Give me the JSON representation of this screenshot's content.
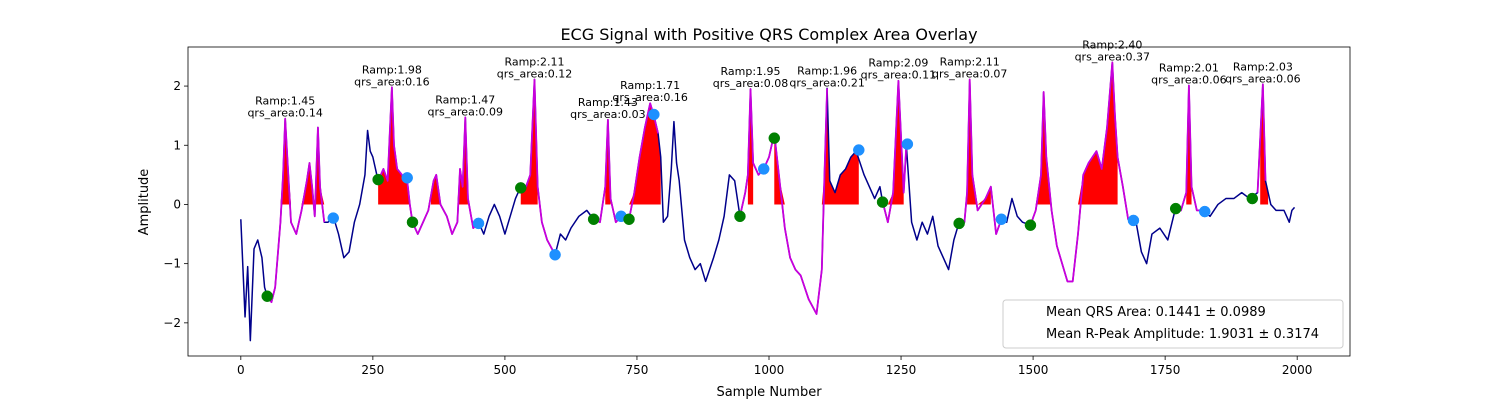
{
  "chart_data": {
    "type": "line",
    "title": "ECG Signal with Positive QRS Complex Area Overlay",
    "xlabel": "Sample Number",
    "ylabel": "Amplitude",
    "xlim": [
      -100,
      2100
    ],
    "ylim": [
      -2.56,
      2.66
    ],
    "xticks": [
      0,
      250,
      500,
      750,
      1000,
      1250,
      1500,
      1750,
      2000
    ],
    "yticks": [
      {
        "value": -2,
        "label": "−2"
      },
      {
        "value": -1,
        "label": "−1"
      },
      0,
      1,
      2
    ],
    "x": [
      0,
      8,
      13,
      18,
      25,
      32,
      40,
      45,
      50,
      58,
      65,
      75,
      80,
      84,
      88,
      95,
      105,
      115,
      125,
      130,
      135,
      140,
      146,
      150,
      158,
      165,
      175,
      185,
      195,
      205,
      215,
      225,
      235,
      240,
      245,
      250,
      260,
      270,
      278,
      282,
      286,
      290,
      296,
      305,
      315,
      320,
      325,
      335,
      345,
      355,
      365,
      370,
      378,
      390,
      400,
      410,
      415,
      420,
      425,
      430,
      440,
      450,
      460,
      470,
      480,
      490,
      500,
      510,
      520,
      530,
      540,
      548,
      556,
      562,
      570,
      580,
      595,
      605,
      615,
      625,
      640,
      655,
      668,
      680,
      690,
      695,
      700,
      710,
      720,
      735,
      745,
      755,
      765,
      775,
      782,
      790,
      795,
      800,
      808,
      815,
      820,
      825,
      830,
      840,
      850,
      860,
      870,
      880,
      895,
      905,
      915,
      925,
      935,
      945,
      955,
      960,
      965,
      970,
      980,
      990,
      1000,
      1010,
      1020,
      1030,
      1040,
      1050,
      1060,
      1075,
      1090,
      1100,
      1105,
      1110,
      1115,
      1125,
      1135,
      1145,
      1155,
      1165,
      1180,
      1190,
      1200,
      1210,
      1215,
      1225,
      1235,
      1245,
      1255,
      1260,
      1270,
      1280,
      1290,
      1300,
      1310,
      1320,
      1330,
      1340,
      1350,
      1360,
      1370,
      1375,
      1380,
      1385,
      1395,
      1410,
      1420,
      1430,
      1440,
      1450,
      1460,
      1470,
      1480,
      1495,
      1505,
      1515,
      1520,
      1525,
      1535,
      1545,
      1555,
      1565,
      1575,
      1585,
      1595,
      1605,
      1620,
      1630,
      1640,
      1650,
      1655,
      1660,
      1670,
      1680,
      1695,
      1705,
      1715,
      1725,
      1740,
      1755,
      1770,
      1780,
      1790,
      1795,
      1800,
      1810,
      1820,
      1835,
      1850,
      1865,
      1880,
      1895,
      1910,
      1925,
      1935,
      1940,
      1950,
      1960,
      1975,
      1985,
      1990,
      1995
    ],
    "series": [
      {
        "color": "#00008b",
        "values": [
          -0.25,
          -1.9,
          -1.05,
          -2.3,
          -0.75,
          -0.6,
          -0.9,
          -1.4,
          -1.55,
          -1.65,
          -1.4,
          -0.3,
          0.5,
          1.45,
          0.8,
          -0.3,
          -0.5,
          -0.1,
          0.4,
          0.7,
          0.3,
          -0.2,
          1.3,
          0.3,
          -0.3,
          -0.3,
          -0.2,
          -0.5,
          -0.9,
          -0.8,
          -0.3,
          0,
          0.5,
          1.25,
          0.9,
          0.8,
          0.4,
          0.6,
          0.4,
          1.2,
          1.98,
          1.0,
          0.6,
          0.5,
          0.4,
          0,
          -0.3,
          -0.5,
          -0.3,
          -0.1,
          0.4,
          0.5,
          0,
          -0.2,
          -0.5,
          -0.3,
          0.6,
          0.3,
          1.47,
          0.1,
          -0.4,
          -0.3,
          -0.5,
          -0.2,
          0,
          -0.2,
          -0.5,
          -0.2,
          0.1,
          0.3,
          0.3,
          0.5,
          2.11,
          0.3,
          -0.3,
          -0.6,
          -0.85,
          -0.5,
          -0.6,
          -0.4,
          -0.2,
          -0.1,
          -0.25,
          -0.3,
          0.3,
          1.43,
          0.1,
          -0.3,
          -0.2,
          -0.25,
          0.2,
          0.8,
          1.3,
          1.71,
          1.5,
          1.2,
          0.8,
          -0.3,
          -0.2,
          0.6,
          1.4,
          0.7,
          0.4,
          -0.6,
          -0.9,
          -1.1,
          -1.0,
          -1.3,
          -0.9,
          -0.6,
          -0.2,
          0.5,
          0.4,
          -0.2,
          0.2,
          0.5,
          1.95,
          0.7,
          0.5,
          0.6,
          0.8,
          1.2,
          0.4,
          -0.4,
          -0.9,
          -1.1,
          -1.2,
          -1.6,
          -1.85,
          -1.1,
          0.5,
          1.96,
          0.4,
          0.2,
          0.5,
          0.6,
          0.8,
          0.9,
          0.5,
          0.3,
          0.1,
          0.3,
          0.05,
          -0.3,
          0.2,
          2.09,
          0.2,
          1.0,
          -0.3,
          -0.6,
          -0.3,
          -0.5,
          -0.2,
          -0.7,
          -0.9,
          -1.1,
          -0.6,
          -0.3,
          -0.3,
          0.2,
          2.11,
          0.5,
          -0.1,
          0.1,
          0.3,
          -0.5,
          -0.25,
          -0.3,
          0.1,
          -0.2,
          -0.3,
          -0.35,
          -0.1,
          0.5,
          1.9,
          0.8,
          -0.1,
          -0.7,
          -1.0,
          -1.3,
          -1.3,
          -0.5,
          0.5,
          0.7,
          0.9,
          0.6,
          1.3,
          2.4,
          1.5,
          0.8,
          0.3,
          -0.25,
          -0.3,
          -0.8,
          -1.0,
          -0.5,
          -0.4,
          -0.6,
          -0.05,
          -0.1,
          0.2,
          2.01,
          0.3,
          -0.1,
          -0.1,
          -0.2,
          0,
          0.1,
          0.1,
          0.2,
          0.1,
          0.2,
          2.03,
          0.4,
          0,
          -0.1,
          -0.1,
          -0.3,
          -0.1,
          -0.05
        ],
        "highlight": {
          "color": "#c800dc",
          "ranges": [
            [
              50,
              160
            ],
            [
              260,
              450
            ],
            [
              530,
              600
            ],
            [
              665,
              790
            ],
            [
              945,
              1110
            ],
            [
              1215,
              1260
            ],
            [
              1360,
              1440
            ],
            [
              1495,
              1690
            ],
            [
              1770,
              1825
            ],
            [
              1915,
              1945
            ]
          ]
        },
        "fill": {
          "color": "#ff0000",
          "ranges": [
            [
              75,
              160
            ],
            [
              260,
              320
            ],
            [
              360,
              430
            ],
            [
              530,
              562
            ],
            [
              690,
              700
            ],
            [
              735,
              795
            ],
            [
              960,
              970
            ],
            [
              1010,
              1170
            ],
            [
              1215,
              1255
            ],
            [
              1375,
              1420
            ],
            [
              1505,
              1660
            ],
            [
              1790,
              1800
            ],
            [
              1930,
              1945
            ]
          ]
        }
      }
    ],
    "markers": [
      {
        "color": "#1e90ff",
        "x": [
          175,
          315,
          450,
          595,
          720,
          782,
          990,
          1170,
          1262,
          1440,
          1690,
          1825
        ],
        "values": [
          -0.23,
          0.45,
          -0.32,
          -0.85,
          -0.2,
          1.52,
          0.6,
          0.92,
          1.02,
          -0.25,
          -0.27,
          -0.12
        ]
      },
      {
        "color": "#008000",
        "x": [
          50,
          260,
          325,
          530,
          668,
          735,
          945,
          1010,
          1215,
          1360,
          1495,
          1770,
          1915
        ],
        "values": [
          -1.55,
          0.42,
          -0.3,
          0.28,
          -0.25,
          -0.25,
          -0.2,
          1.12,
          0.04,
          -0.32,
          -0.35,
          -0.07,
          0.1
        ]
      }
    ],
    "annotations": [
      {
        "x": 84,
        "y": 1.45,
        "lines": [
          "Ramp:1.45",
          "qrs_area:0.14"
        ]
      },
      {
        "x": 286,
        "y": 1.98,
        "lines": [
          "Ramp:1.98",
          "qrs_area:0.16"
        ]
      },
      {
        "x": 425,
        "y": 1.47,
        "lines": [
          "Ramp:1.47",
          "qrs_area:0.09"
        ]
      },
      {
        "x": 556,
        "y": 2.11,
        "lines": [
          "Ramp:2.11",
          "qrs_area:0.12"
        ]
      },
      {
        "x": 695,
        "y": 1.43,
        "lines": [
          "Ramp:1.43",
          "qrs_area:0.03"
        ]
      },
      {
        "x": 775,
        "y": 1.71,
        "lines": [
          "Ramp:1.71",
          "qrs_area:0.16"
        ]
      },
      {
        "x": 965,
        "y": 1.95,
        "lines": [
          "Ramp:1.95",
          "qrs_area:0.08"
        ]
      },
      {
        "x": 1110,
        "y": 1.96,
        "lines": [
          "Ramp:1.96",
          "qrs_area:0.21"
        ]
      },
      {
        "x": 1245,
        "y": 2.09,
        "lines": [
          "Ramp:2.09",
          "qrs_area:0.11"
        ]
      },
      {
        "x": 1380,
        "y": 2.11,
        "lines": [
          "Ramp:2.11",
          "qrs_area:0.07"
        ]
      },
      {
        "x": 1650,
        "y": 2.4,
        "lines": [
          "Ramp:2.40",
          "qrs_area:0.37"
        ]
      },
      {
        "x": 1795,
        "y": 2.01,
        "lines": [
          "Ramp:2.01",
          "qrs_area:0.06"
        ]
      },
      {
        "x": 1935,
        "y": 2.03,
        "lines": [
          "Ramp:2.03",
          "qrs_area:0.06"
        ]
      }
    ],
    "legend": {
      "loc": "lower right",
      "entries": [
        "Mean QRS Area: 0.1441 ± 0.0989",
        "Mean R-Peak Amplitude: 1.9031 ± 0.3174"
      ]
    }
  }
}
